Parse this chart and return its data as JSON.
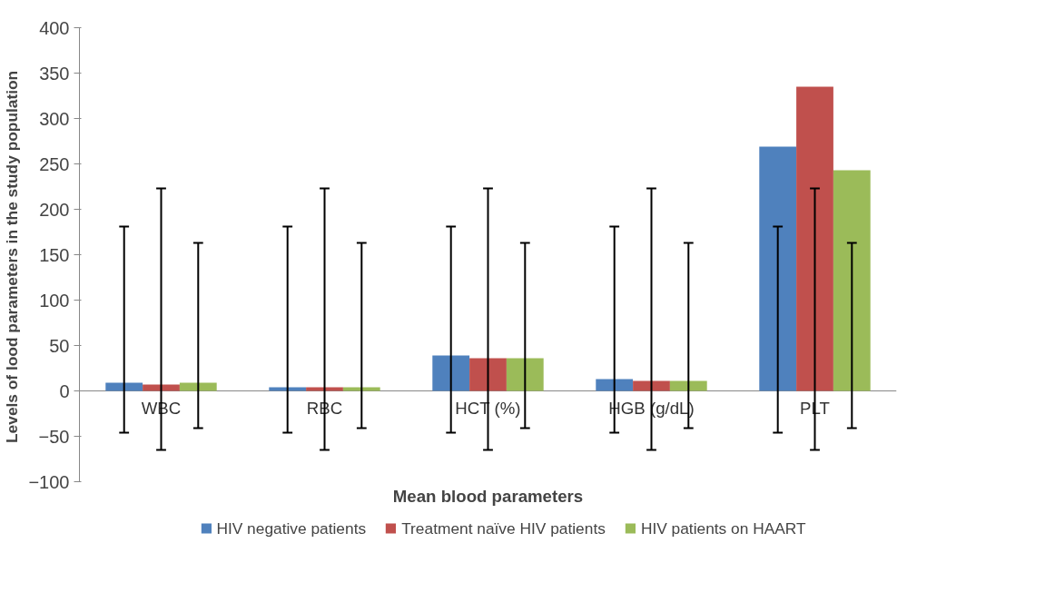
{
  "chart_data": {
    "type": "bar",
    "xlabel": "Mean blood parameters",
    "ylabel": "Levels of lood parameters in  the study population",
    "categories": [
      "WBC",
      "RBC",
      "HCT (%)",
      "HGB (g/dL)",
      "PLT"
    ],
    "series": [
      {
        "name": "HIV negative patients",
        "color": "#4f81bd",
        "values": [
          9,
          4,
          39,
          13,
          269
        ],
        "errors": [
          [
            -46,
            181
          ],
          [
            -46,
            181
          ],
          [
            -46,
            181
          ],
          [
            -46,
            181
          ],
          [
            -46,
            181
          ]
        ]
      },
      {
        "name": "Treatment naïve HIV patients",
        "color": "#c0504d",
        "values": [
          7,
          4,
          36,
          11,
          335
        ],
        "errors": [
          [
            -65,
            223
          ],
          [
            -65,
            223
          ],
          [
            -65,
            223
          ],
          [
            -65,
            223
          ],
          [
            -65,
            223
          ]
        ]
      },
      {
        "name": "HIV patients on HAART",
        "color": "#9bbb59",
        "values": [
          9,
          4,
          36,
          11,
          243
        ],
        "errors": [
          [
            -41,
            163
          ],
          [
            -41,
            163
          ],
          [
            -41,
            163
          ],
          [
            -41,
            163
          ],
          [
            -41,
            163
          ]
        ]
      }
    ],
    "ylim": [
      -100,
      400
    ],
    "yticks": [
      -100,
      -50,
      0,
      50,
      100,
      150,
      200,
      250,
      300,
      350,
      400
    ],
    "grid": false,
    "legend": "bottom"
  }
}
